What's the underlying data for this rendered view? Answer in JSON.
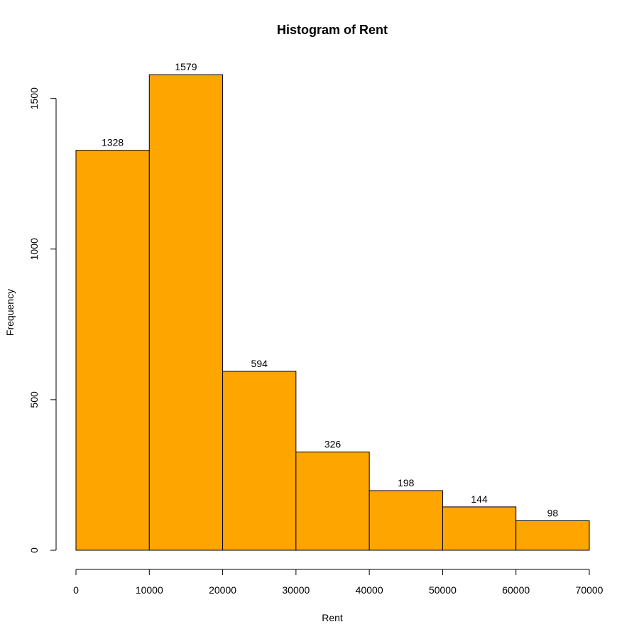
{
  "chart_data": {
    "type": "bar",
    "title": "Histogram of Rent",
    "xlabel": "Rent",
    "ylabel": "Frequency",
    "bins": [
      {
        "from": 0,
        "to": 10000,
        "value": 1328
      },
      {
        "from": 10000,
        "to": 20000,
        "value": 1579
      },
      {
        "from": 20000,
        "to": 30000,
        "value": 594
      },
      {
        "from": 30000,
        "to": 40000,
        "value": 326
      },
      {
        "from": 40000,
        "to": 50000,
        "value": 198
      },
      {
        "from": 50000,
        "to": 60000,
        "value": 144
      },
      {
        "from": 60000,
        "to": 70000,
        "value": 98
      }
    ],
    "xlim": [
      0,
      70000
    ],
    "ylim": [
      0,
      1579
    ],
    "x_ticks": [
      "0",
      "10000",
      "20000",
      "30000",
      "40000",
      "50000",
      "60000",
      "70000"
    ],
    "y_ticks": [
      "0",
      "500",
      "1000",
      "1500"
    ],
    "bar_color": "#FFA500",
    "grid": false,
    "legend": "none"
  }
}
